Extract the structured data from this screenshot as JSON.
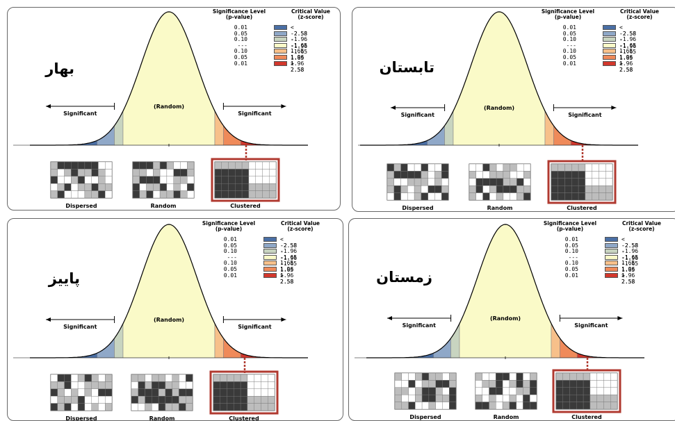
{
  "chart_data": [
    {
      "type": "area",
      "season_label": "بهار",
      "title": "",
      "curve_labels": {
        "left": "Significant",
        "center": "(Random)",
        "right": "Significant"
      },
      "legend": {
        "header_p": "Significance Level\n(p-value)",
        "header_z": "Critical Value\n(z-score)",
        "rows": [
          {
            "p": "0.01",
            "z": "< -2.58",
            "color": "#4a6fa5"
          },
          {
            "p": "0.05",
            "z": "-2.58 - -1.96",
            "color": "#8fa8c8"
          },
          {
            "p": "0.10",
            "z": "-1.96 - -1.65",
            "color": "#c8d4c0"
          },
          {
            "p": "---",
            "z": "-1.65 - 1.65",
            "color": "#fafac8"
          },
          {
            "p": "0.10",
            "z": "1.65 - 1.96",
            "color": "#f7c08a"
          },
          {
            "p": "0.05",
            "z": "1.96 - 2.58",
            "color": "#ef8a5a"
          },
          {
            "p": "0.01",
            "z": "> 2.58",
            "color": "#d2372c"
          }
        ]
      },
      "thumbnails": [
        "Dispersed",
        "Random",
        "Clustered"
      ],
      "highlighted": "Clustered"
    },
    {
      "type": "area",
      "season_label": "تابستان",
      "title": "",
      "curve_labels": {
        "left": "Significant",
        "center": "(Random)",
        "right": "Significant"
      },
      "legend": {
        "header_p": "Significance Level\n(p-value)",
        "header_z": "Critical Value\n(z-score)",
        "rows": [
          {
            "p": "0.01",
            "z": "< -2.58",
            "color": "#4a6fa5"
          },
          {
            "p": "0.05",
            "z": "-2.58 - -1.96",
            "color": "#8fa8c8"
          },
          {
            "p": "0.10",
            "z": "-1.96 - -1.65",
            "color": "#c8d4c0"
          },
          {
            "p": "---",
            "z": "-1.65 - 1.65",
            "color": "#fafac8"
          },
          {
            "p": "0.10",
            "z": "1.65 - 1.96",
            "color": "#f7c08a"
          },
          {
            "p": "0.05",
            "z": "1.96 - 2.58",
            "color": "#ef8a5a"
          },
          {
            "p": "0.01",
            "z": "> 2.58",
            "color": "#d2372c"
          }
        ]
      },
      "thumbnails": [
        "Dispersed",
        "Random",
        "Clustered"
      ],
      "highlighted": "Clustered"
    },
    {
      "type": "area",
      "season_label": "پاییز",
      "title": "",
      "curve_labels": {
        "left": "Significant",
        "center": "(Random)",
        "right": "Significant"
      },
      "legend": {
        "header_p": "Significance Level\n(p-value)",
        "header_z": "Critical Value\n(z-score)",
        "rows": [
          {
            "p": "0.01",
            "z": "< -2.58",
            "color": "#4a6fa5"
          },
          {
            "p": "0.05",
            "z": "-2.58 - -1.96",
            "color": "#8fa8c8"
          },
          {
            "p": "0.10",
            "z": "-1.96 - -1.65",
            "color": "#c8d4c0"
          },
          {
            "p": "---",
            "z": "-1.65 - 1.65",
            "color": "#fafac8"
          },
          {
            "p": "0.10",
            "z": "1.65 - 1.96",
            "color": "#f7c08a"
          },
          {
            "p": "0.05",
            "z": "1.96 - 2.58",
            "color": "#ef8a5a"
          },
          {
            "p": "0.01",
            "z": "> 2.58",
            "color": "#d2372c"
          }
        ]
      },
      "thumbnails": [
        "Dispersed",
        "Random",
        "Clustered"
      ],
      "highlighted": "Clustered"
    },
    {
      "type": "area",
      "season_label": "زمستان",
      "title": "",
      "curve_labels": {
        "left": "Significant",
        "center": "(Random)",
        "right": "Significant"
      },
      "legend": {
        "header_p": "Significance Level\n(p-value)",
        "header_z": "Critical Value\n(z-score)",
        "rows": [
          {
            "p": "0.01",
            "z": "< -2.58",
            "color": "#4a6fa5"
          },
          {
            "p": "0.05",
            "z": "-2.58 - -1.96",
            "color": "#8fa8c8"
          },
          {
            "p": "0.10",
            "z": "-1.96 - -1.65",
            "color": "#c8d4c0"
          },
          {
            "p": "---",
            "z": "-1.65 - 1.65",
            "color": "#fafac8"
          },
          {
            "p": "0.10",
            "z": "1.65 - 1.96",
            "color": "#f7c08a"
          },
          {
            "p": "0.05",
            "z": "1.96 - 2.58",
            "color": "#ef8a5a"
          },
          {
            "p": "0.01",
            "z": "> 2.58",
            "color": "#d2372c"
          }
        ]
      },
      "thumbnails": [
        "Dispersed",
        "Random",
        "Clustered"
      ],
      "highlighted": "Clustered"
    }
  ]
}
